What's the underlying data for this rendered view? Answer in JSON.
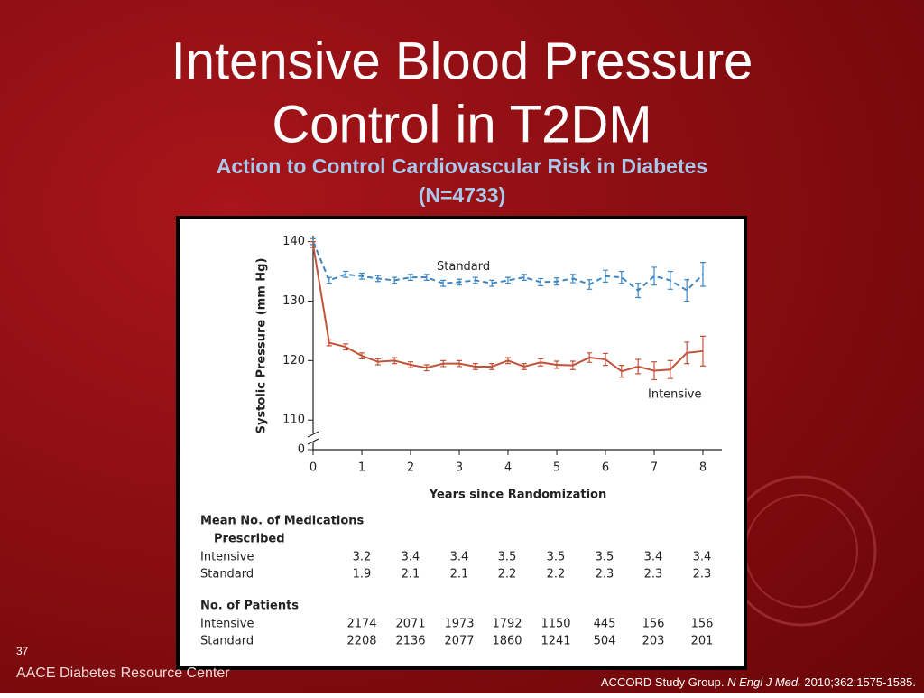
{
  "slide": {
    "title_lines": [
      "Intensive Blood Pressure",
      "Control in T2DM"
    ],
    "subtitle_lines": [
      "Action to Control Cardiovascular Risk in Diabetes",
      "(N=4733)"
    ],
    "page_number": "37",
    "footer": "AACE Diabetes Resource Center",
    "citation": {
      "authors": "ACCORD Study Group.",
      "journal": "N Engl J Med.",
      "details": "2010;362:1575-1585."
    }
  },
  "chart_data": {
    "type": "line",
    "ylabel": "Systolic Pressure (mm Hg)",
    "xlabel": "Years since Randomization",
    "x": [
      0,
      0.33,
      0.67,
      1,
      1.33,
      1.67,
      2,
      2.33,
      2.67,
      3,
      3.33,
      3.67,
      4,
      4.33,
      4.67,
      5,
      5.33,
      5.67,
      6,
      6.33,
      6.67,
      7,
      7.33,
      7.67,
      8
    ],
    "series": [
      {
        "name": "Standard",
        "color": "#3b86c2",
        "dashed": true,
        "values": [
          140,
          133.5,
          134.5,
          134.2,
          133.8,
          133.5,
          134,
          134,
          133,
          133.2,
          133.5,
          133,
          133.5,
          134,
          133.2,
          133.3,
          133.8,
          132.8,
          134.2,
          134,
          131.8,
          134.2,
          133.5,
          131.8,
          134.5
        ],
        "errors": [
          0.5,
          0.5,
          0.5,
          0.5,
          0.5,
          0.5,
          0.5,
          0.5,
          0.5,
          0.5,
          0.5,
          0.5,
          0.5,
          0.5,
          0.6,
          0.6,
          0.7,
          0.8,
          1,
          1,
          1.2,
          1.5,
          1.5,
          1.8,
          2
        ]
      },
      {
        "name": "Intensive",
        "color": "#c0533a",
        "dashed": false,
        "values": [
          139.5,
          123,
          122.3,
          120.8,
          119.8,
          120,
          119.3,
          118.8,
          119.5,
          119.5,
          119,
          119,
          120,
          119,
          119.7,
          119.3,
          119.2,
          120.5,
          120.2,
          118.2,
          119,
          118.3,
          118.5,
          121.3,
          121.6
        ],
        "errors": [
          0.5,
          0.5,
          0.5,
          0.5,
          0.5,
          0.5,
          0.5,
          0.5,
          0.5,
          0.5,
          0.5,
          0.5,
          0.5,
          0.5,
          0.6,
          0.6,
          0.7,
          0.8,
          1,
          1,
          1.2,
          1.5,
          1.5,
          1.8,
          2.5
        ]
      }
    ],
    "xlim": [
      0,
      8.3
    ],
    "xticks": [
      0,
      1,
      2,
      3,
      4,
      5,
      6,
      7,
      8
    ],
    "ylim": [
      0,
      141
    ],
    "ybreak": [
      0,
      107
    ],
    "yticks": [
      0,
      110,
      120,
      130,
      140
    ]
  },
  "tables": [
    {
      "title_lines": [
        "Mean No. of Medications",
        "Prescribed"
      ],
      "rows": [
        {
          "label": "Intensive",
          "values": [
            3.2,
            3.4,
            3.4,
            3.5,
            3.5,
            3.5,
            3.4,
            3.4
          ]
        },
        {
          "label": "Standard",
          "values": [
            1.9,
            2.1,
            2.1,
            2.2,
            2.2,
            2.3,
            2.3,
            2.3
          ]
        }
      ]
    },
    {
      "title_lines": [
        "No. of Patients"
      ],
      "rows": [
        {
          "label": "Intensive",
          "values": [
            2174,
            2071,
            1973,
            1792,
            1150,
            445,
            156,
            156
          ]
        },
        {
          "label": "Standard",
          "values": [
            2208,
            2136,
            2077,
            1860,
            1241,
            504,
            203,
            201
          ]
        }
      ]
    }
  ]
}
